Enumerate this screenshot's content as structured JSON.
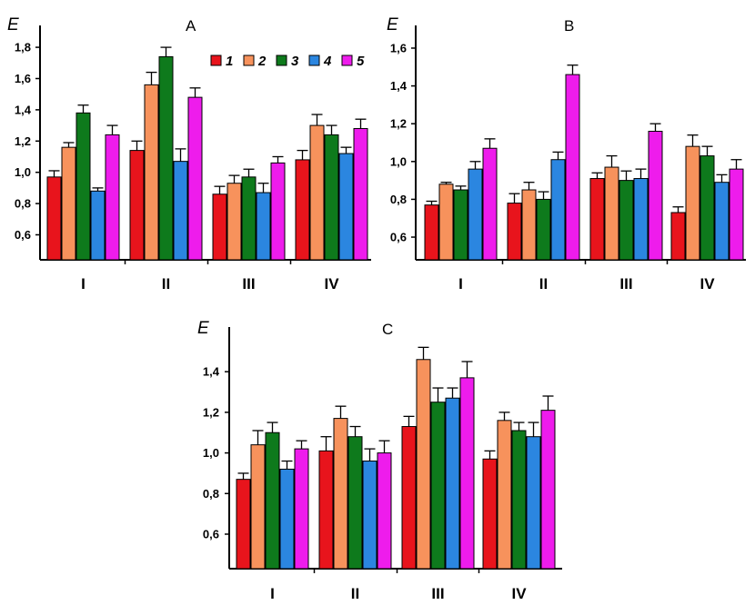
{
  "chart_data": [
    {
      "type": "bar",
      "title": "A",
      "ylabel": "E",
      "xlabel": "",
      "ylim": [
        0.44,
        1.94
      ],
      "yticks": [
        "0,6",
        "0,8",
        "1,0",
        "1,2",
        "1,4",
        "1,6",
        "1,8"
      ],
      "categories": [
        "I",
        "II",
        "III",
        "IV"
      ],
      "series": [
        {
          "name": "1",
          "values": [
            0.97,
            1.14,
            0.86,
            1.08
          ],
          "errors": [
            0.04,
            0.06,
            0.05,
            0.06
          ]
        },
        {
          "name": "2",
          "values": [
            1.16,
            1.56,
            0.93,
            1.3
          ],
          "errors": [
            0.03,
            0.08,
            0.05,
            0.07
          ]
        },
        {
          "name": "3",
          "values": [
            1.38,
            1.74,
            0.97,
            1.24
          ],
          "errors": [
            0.05,
            0.06,
            0.05,
            0.06
          ]
        },
        {
          "name": "4",
          "values": [
            0.88,
            1.07,
            0.87,
            1.12
          ],
          "errors": [
            0.02,
            0.08,
            0.06,
            0.04
          ]
        },
        {
          "name": "5",
          "values": [
            1.24,
            1.48,
            1.06,
            1.28
          ],
          "errors": [
            0.06,
            0.06,
            0.04,
            0.06
          ]
        }
      ],
      "legend": [
        "1",
        "2",
        "3",
        "4",
        "5"
      ]
    },
    {
      "type": "bar",
      "title": "B",
      "ylabel": "E",
      "xlabel": "",
      "ylim": [
        0.48,
        1.72
      ],
      "yticks": [
        "0,6",
        "0,8",
        "1,0",
        "1,2",
        "1,4",
        "1,6"
      ],
      "categories": [
        "I",
        "II",
        "III",
        "IV"
      ],
      "series": [
        {
          "name": "1",
          "values": [
            0.77,
            0.78,
            0.91,
            0.73
          ],
          "errors": [
            0.02,
            0.05,
            0.03,
            0.03
          ]
        },
        {
          "name": "2",
          "values": [
            0.88,
            0.85,
            0.97,
            1.08
          ],
          "errors": [
            0.01,
            0.04,
            0.06,
            0.06
          ]
        },
        {
          "name": "3",
          "values": [
            0.85,
            0.8,
            0.9,
            1.03
          ],
          "errors": [
            0.02,
            0.04,
            0.05,
            0.05
          ]
        },
        {
          "name": "4",
          "values": [
            0.96,
            1.01,
            0.91,
            0.89
          ],
          "errors": [
            0.04,
            0.04,
            0.05,
            0.04
          ]
        },
        {
          "name": "5",
          "values": [
            1.07,
            1.46,
            1.16,
            0.96
          ],
          "errors": [
            0.05,
            0.05,
            0.04,
            0.05
          ]
        }
      ]
    },
    {
      "type": "bar",
      "title": "C",
      "ylabel": "E",
      "xlabel": "",
      "ylim": [
        0.43,
        1.62
      ],
      "yticks": [
        "0,6",
        "0,8",
        "1,0",
        "1,2",
        "1,4"
      ],
      "categories": [
        "I",
        "II",
        "III",
        "IV"
      ],
      "series": [
        {
          "name": "1",
          "values": [
            0.87,
            1.01,
            1.13,
            0.97
          ],
          "errors": [
            0.03,
            0.07,
            0.05,
            0.04
          ]
        },
        {
          "name": "2",
          "values": [
            1.04,
            1.17,
            1.46,
            1.16
          ],
          "errors": [
            0.07,
            0.06,
            0.06,
            0.04
          ]
        },
        {
          "name": "3",
          "values": [
            1.1,
            1.08,
            1.25,
            1.11
          ],
          "errors": [
            0.05,
            0.05,
            0.07,
            0.04
          ]
        },
        {
          "name": "4",
          "values": [
            0.92,
            0.96,
            1.27,
            1.08
          ],
          "errors": [
            0.04,
            0.06,
            0.05,
            0.07
          ]
        },
        {
          "name": "5",
          "values": [
            1.02,
            1.0,
            1.37,
            1.21
          ],
          "errors": [
            0.04,
            0.06,
            0.08,
            0.07
          ]
        }
      ]
    }
  ],
  "colors": {
    "series": [
      "#e8141c",
      "#f7925c",
      "#0e7a1c",
      "#2b86e0",
      "#ee1cec"
    ],
    "axis": "#000000",
    "bar_stroke": "#000000"
  }
}
